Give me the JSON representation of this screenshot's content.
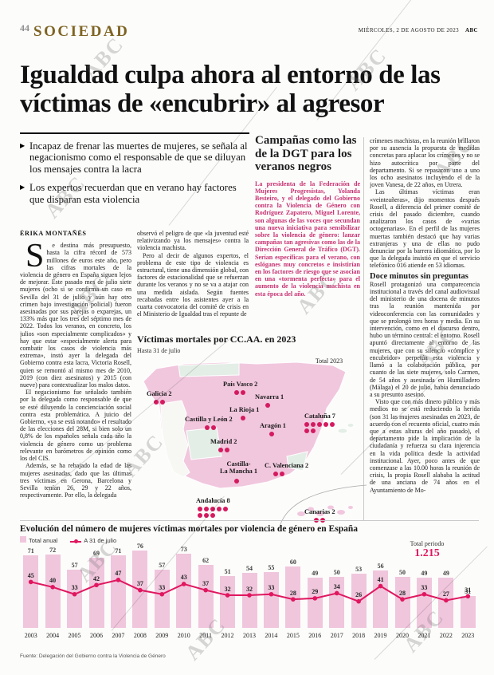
{
  "header": {
    "page_number": "44",
    "section": "SOCIEDAD",
    "date": "MIÉRCOLES, 2 DE AGOSTO DE 2023",
    "brand": "ABC"
  },
  "headline": "Igualdad culpa ahora al entorno de las víctimas de «encubrir» al agresor",
  "bullets": [
    "Incapaz de frenar las muertes de mujeres, se señala al negacionismo como el responsable de que se diluyan los mensajes contra la lacra",
    "Los expertos recuerdan que en verano hay factores que disparan esta violencia"
  ],
  "byline": "ÉRIKA MONTAÑÉS",
  "article": {
    "first_letter": "S",
    "col1_first_rest": "e destina más presupuesto, hasta la cifra récord de 573 millones de euros este año, pero las cifras mortales de la violencia de género en España siguen lejos de mejorar. Este pasado mes de julio siete mujeres (ocho si se confirma un caso en Sevilla del 31 de julio y aún hay otro crimen bajo investigación policial) fueron asesinadas por sus parejas o exparejas, un 133% más que los tres del séptimo mes de 2022. Todos los veranos, en concreto, los julios «son especialmente complicados» y hay que estar «especialmente alerta para combatir los casos de violencia más extrema», instó ayer la delegada del Gobierno contra esta lacra, Victoria Rosell, quien se remontó al mismo mes de 2010, 2019 (con diez asesinatos) y 2015 (con nueve) para contextualizar los malos datos.",
    "col1_paragraphs": [
      "El negacionismo fue señalado también por la delegada como responsable de que se esté diluyendo la concienciación social contra esta problemática. A juicio del Gobierno, «ya se está notando» el resultado de las elecciones del 28M, si bien solo un 0,8% de los españoles señala cada año la violencia de género como un problema relevante en barómetros de opinión como los del CIS.",
      "Además, se ha rebajado la edad de las mujeres asesinadas, dado que las últimas tres víctimas en Gerona, Barcelona y Sevilla tenían 26, 29 y 22 años, respectivamente. Por ello, la delegada"
    ],
    "col2_paragraphs": [
      "observó el peligro de que «la juventud esté relativizando ya los mensajes» contra la violencia machista.",
      "Pero al decir de algunos expertos, el problema de este tipo de violencia es estructural, tiene una dimensión global, con factores de estacionalidad que se refuerzan durante los veranos y no se va a atajar con una medida aislada. Según fuentes recabadas entre los asistentes ayer a la cuarta convocatoria del comité de crisis en el Ministerio de Igualdad tras el repunte de"
    ],
    "col4_paragraphs_a": [
      "crímenes machistas, en la reunión brillaron por su ausencia la propuesta de medidas concretas para aplacar los crímenes y no se hizo autocrítica por parte del departamento. Si se repasaron uno a uno los ocho asesinatos incluyendo el de la joven Vanesa, de 22 años, en Utrera.",
      "Las últimas víctimas eran «veinteañeras», dijo momentos después Rosell, a diferencia del primer comité de crisis del pasado diciembre, cuando analizaron los casos de «varias octogenarias». En el perfil de las mujeres muertas también destacó que hay varias extranjeras y una de ellas no pudo denunciar por la barrera idiomática, por lo que la delegada insistió en que el servicio telefónico 016 atiende en 53 idiomas."
    ],
    "col4_subhead": "Doce minutos sin preguntas",
    "col4_paragraphs_b": [
      "Rosell protagonizó una comparecencia institucional a través del canal audiovisual del ministerio de una docena de minutos tras la reunión mantenida por videoconferencia con las comunidades y que se prolongó tres horas y media. En su intervención, como en el discurso dentro, hubo un término central: el entorno. Rosell apuntó directamente al entorno de las mujeres, que con su silencio «cómplice y encubridor» perpetúa esta violencia y llamó a la colaboración pública, por cuanto de las siete mujeres, solo Carmen, de 54 años y asesinada en Humilladero (Málaga) el 20 de julio, había denunciado a su presunto asesino.",
      "Visto que con más dinero público y más medios no se está reduciendo la herida (son 31 las mujeres asesinadas en 2023, de acuerdo con el recuento oficial, cuatro más que a estas alturas del año pasado), el departamento pide la implicación de la ciudadanía y refuerza su clara injerencia en la vida política desde la actividad institucional. Ayer, poco antes de que comenzase a las 10.00 horas la reunión de crisis, la propia Rosell alababa la actitud de una anciana de 74 años en el Ayuntamiento de Mo-"
    ]
  },
  "sidebar_box": {
    "title": "Campañas como las de la DGT para los veranos negros",
    "body": "La presidenta de la Federación de Mujeres Progresistas, Yolanda Besteiro, y el delegado del Gobierno contra la Violencia de Género con Rodríguez Zapatero, Miguel Lorente, son algunas de las voces que secundan una nueva iniciativa para sensibilizar sobre la violencia de género: lanzar campañas tan agresivas como las de la Dirección General de Tráfico (DGT). Serían específicas para el verano, con eslóganes muy concretos e insistirían en los factores de riesgo que se asocian en una «tormenta perfecta» para el aumento de la violencia machista en esta época del año."
  },
  "map": {
    "title": "Víctimas mortales por CC.AA. en 2023",
    "subtitle": "Hasta 31 de julio",
    "total_label": "Total 2023",
    "total_value": "31",
    "regions": [
      {
        "name": "Galicia",
        "count": 2
      },
      {
        "name": "País Vasco",
        "count": 2
      },
      {
        "name": "Navarra",
        "count": 1
      },
      {
        "name": "La Rioja",
        "count": 1
      },
      {
        "name": "Castilla y León",
        "count": 2
      },
      {
        "name": "Aragón",
        "count": 1
      },
      {
        "name": "Cataluña",
        "count": 7
      },
      {
        "name": "Madrid",
        "count": 2
      },
      {
        "name": "Castilla-\nLa Mancha",
        "count": 1
      },
      {
        "name": "C. Valenciana",
        "count": 2
      },
      {
        "name": "Andalucía",
        "count": 8
      },
      {
        "name": "Canarias",
        "count": 2
      }
    ]
  },
  "chart_data": {
    "type": "bar",
    "title": "Evolución del número de mujeres víctimas mortales por violencia de género en España",
    "categories": [
      2003,
      2004,
      2005,
      2006,
      2007,
      2008,
      2009,
      2010,
      2011,
      2012,
      2013,
      2014,
      2015,
      2016,
      2017,
      2018,
      2019,
      2020,
      2021,
      2022,
      2023
    ],
    "series": [
      {
        "name": "Total anual",
        "type": "bar",
        "values": [
          71,
          72,
          57,
          69,
          71,
          76,
          57,
          73,
          62,
          51,
          54,
          55,
          60,
          49,
          50,
          53,
          56,
          50,
          49,
          49,
          31
        ]
      },
      {
        "name": "A 31 de julio",
        "type": "line",
        "values": [
          45,
          40,
          33,
          42,
          47,
          37,
          33,
          43,
          37,
          32,
          32,
          33,
          28,
          29,
          34,
          26,
          41,
          28,
          33,
          27,
          31
        ]
      }
    ],
    "total_label": "Total periodo",
    "total_value": "1.215",
    "source": "Fuente: Delegación del Gobierno contra la Violencia de Género",
    "ylim": [
      0,
      80
    ],
    "legend_position": "top-left",
    "grid": false
  },
  "colors": {
    "accent_red": "#e0175f",
    "box_text_pink": "#c73272",
    "map_region_pink": "#f1c7de",
    "map_region_pale": "#e3eee6",
    "dot_red": "#d51a5f",
    "bar_pink": "#f0c6dd",
    "section_gold": "#7e6322"
  },
  "watermark": "ABC"
}
